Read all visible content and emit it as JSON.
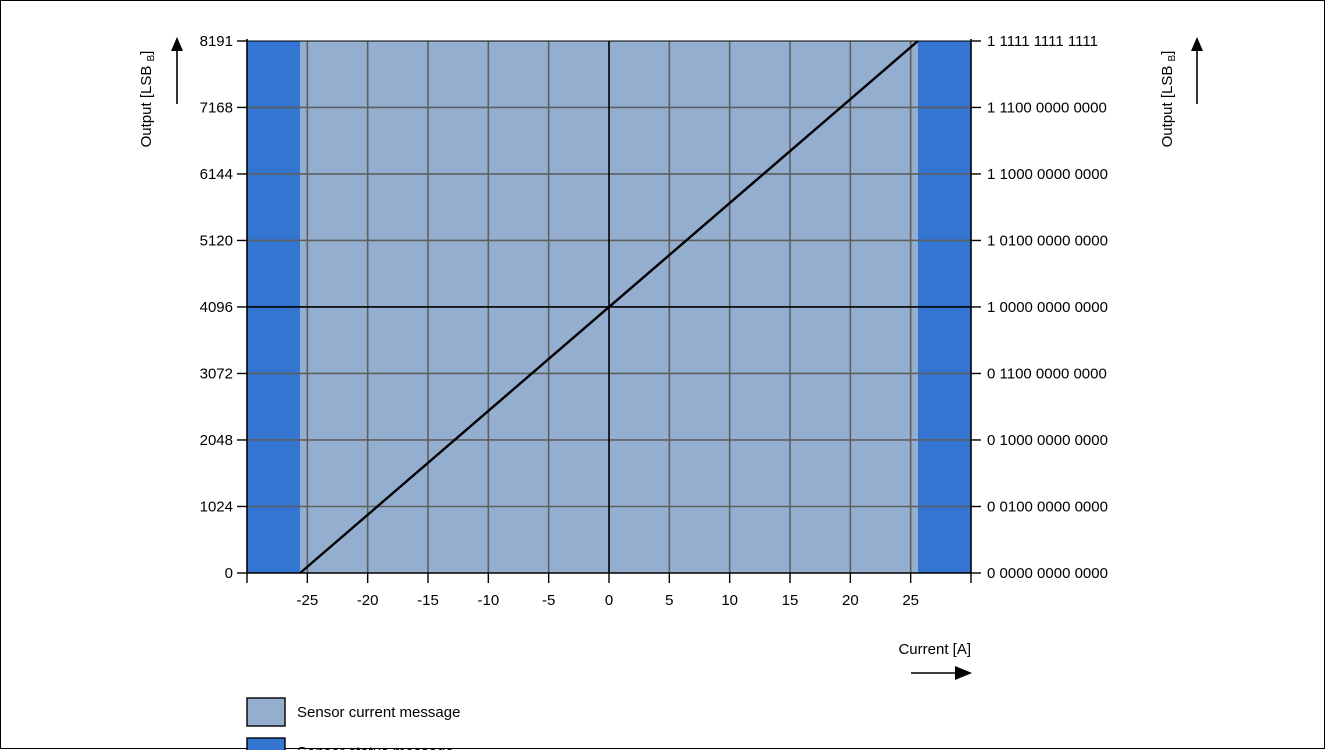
{
  "chart_data": {
    "type": "line",
    "x_axis": {
      "label": "Current [A]",
      "range": [
        -30,
        30
      ],
      "ticks": [
        -25,
        -20,
        -15,
        -10,
        -5,
        0,
        5,
        10,
        15,
        20,
        25
      ]
    },
    "y_axis_left": {
      "label": "Output [LSB",
      "label_sub": "B",
      "label_close": "]",
      "range": [
        0,
        8191
      ],
      "ticks": [
        0,
        1024,
        2048,
        3072,
        4096,
        5120,
        6144,
        7168,
        8191
      ]
    },
    "y_axis_right": {
      "label": "Output [LSB",
      "label_sub": "B",
      "label_close": "]",
      "ticks": [
        {
          "value": 0,
          "label": "0 0000 0000 0000"
        },
        {
          "value": 1024,
          "label": "0 0100 0000 0000"
        },
        {
          "value": 2048,
          "label": "0 1000 0000 0000"
        },
        {
          "value": 3072,
          "label": "0 1100 0000 0000"
        },
        {
          "value": 4096,
          "label": "1 0000 0000 0000"
        },
        {
          "value": 5120,
          "label": "1 0100 0000 0000"
        },
        {
          "value": 6144,
          "label": "1 1000 0000 0000"
        },
        {
          "value": 7168,
          "label": "1 1100 0000 0000"
        },
        {
          "value": 8191,
          "label": "1 1111 1111 1111"
        }
      ]
    },
    "series": [
      {
        "x": [
          -25.6,
          25.6
        ],
        "y": [
          0,
          8191
        ],
        "color": "#000000"
      }
    ],
    "regions": [
      {
        "name": "Sensor current message",
        "x_range": [
          -25.6,
          25.6
        ],
        "color": "#94AECF"
      },
      {
        "name": "Sensor status message",
        "x_range": [
          -30,
          -25.6
        ],
        "color": "#3375D0"
      },
      {
        "name": "Sensor status message",
        "x_range": [
          25.6,
          30
        ],
        "color": "#3375D0"
      }
    ],
    "legend": [
      {
        "label": "Sensor current message",
        "color": "#94AECF"
      },
      {
        "label": "Sensor status message",
        "color": "#3375D0"
      }
    ],
    "grid": true
  }
}
